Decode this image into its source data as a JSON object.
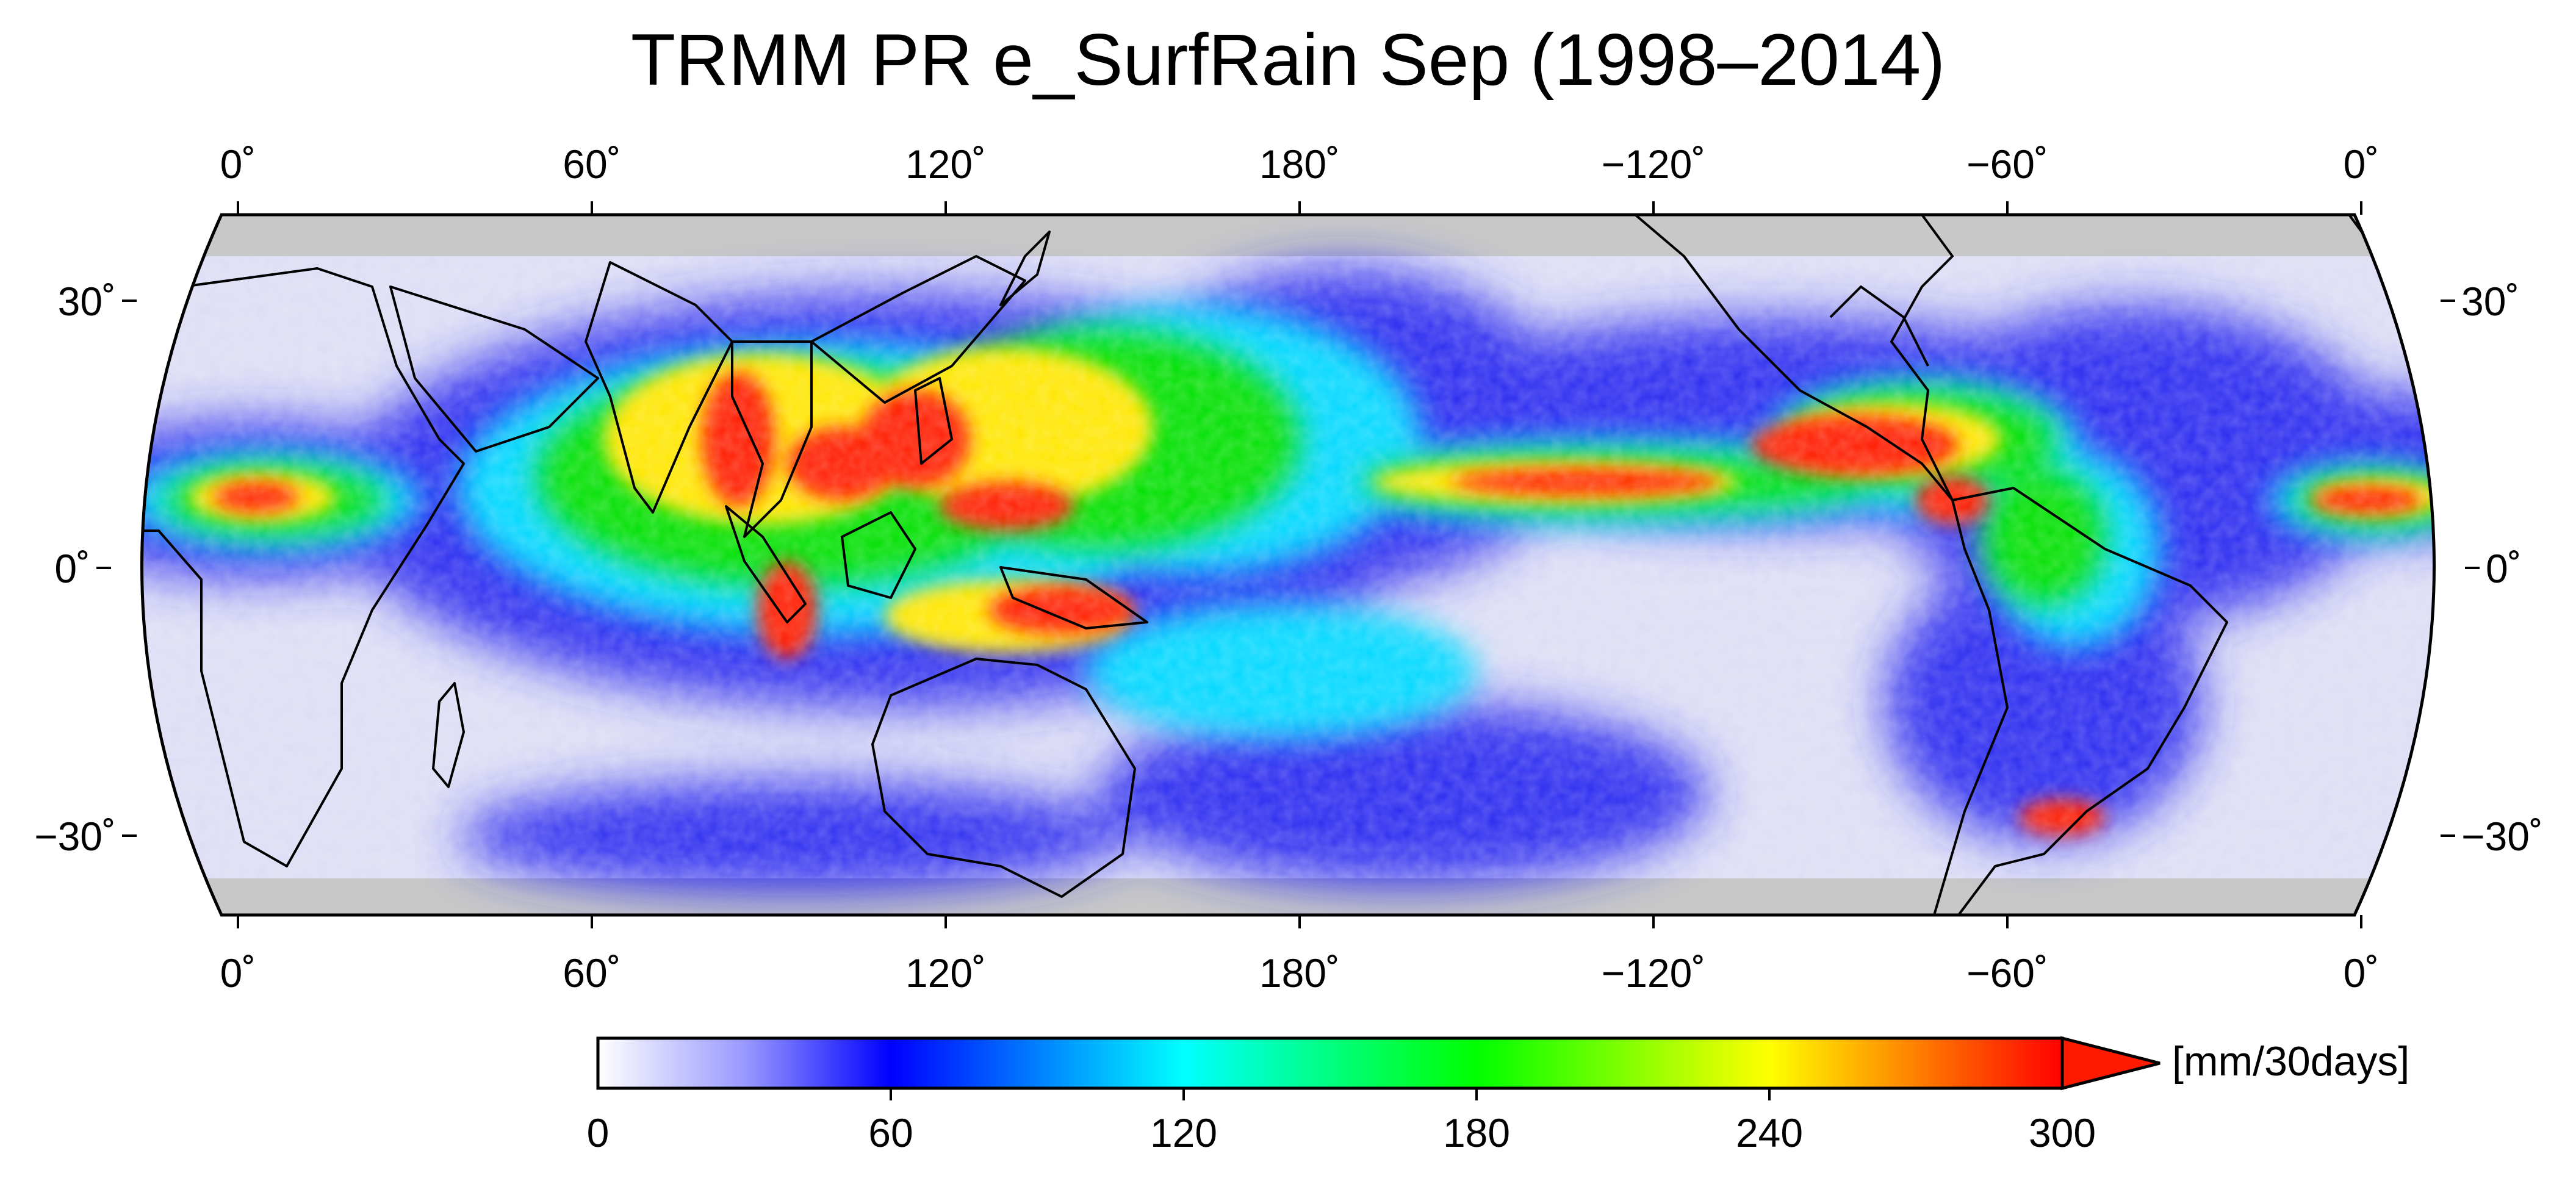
{
  "title": "TRMM PR e_SurfRain Sep (1998–2014)",
  "map": {
    "projection": "global map, 0° to 360° longitude",
    "data_coverage": "approx. 35°S to 35°N (grey bands outside)",
    "top_lon_labels": [
      "0˚",
      "60˚",
      "120˚",
      "180˚",
      "−120˚",
      "−60˚",
      "0˚"
    ],
    "bottom_lon_labels": [
      "0˚",
      "60˚",
      "120˚",
      "180˚",
      "−120˚",
      "−60˚",
      "0˚"
    ],
    "left_lat_labels": [
      "30˚",
      "0˚",
      "−30˚"
    ],
    "right_lat_labels": [
      "30˚",
      "0˚",
      "−30˚"
    ],
    "colors": {
      "no_data": "#c8c8c8",
      "coast": "#000000"
    }
  },
  "colorbar": {
    "unit": "[mm/30days]",
    "tick_labels": [
      "0",
      "60",
      "120",
      "180",
      "240",
      "300"
    ],
    "extend": "max",
    "colormap": [
      {
        "v": 0,
        "c": "#ffffff"
      },
      {
        "v": 30,
        "c": "#9999ff"
      },
      {
        "v": 60,
        "c": "#0000ff"
      },
      {
        "v": 120,
        "c": "#00ffff"
      },
      {
        "v": 180,
        "c": "#00ff00"
      },
      {
        "v": 240,
        "c": "#ffff00"
      },
      {
        "v": 300,
        "c": "#ff0000"
      }
    ]
  }
}
